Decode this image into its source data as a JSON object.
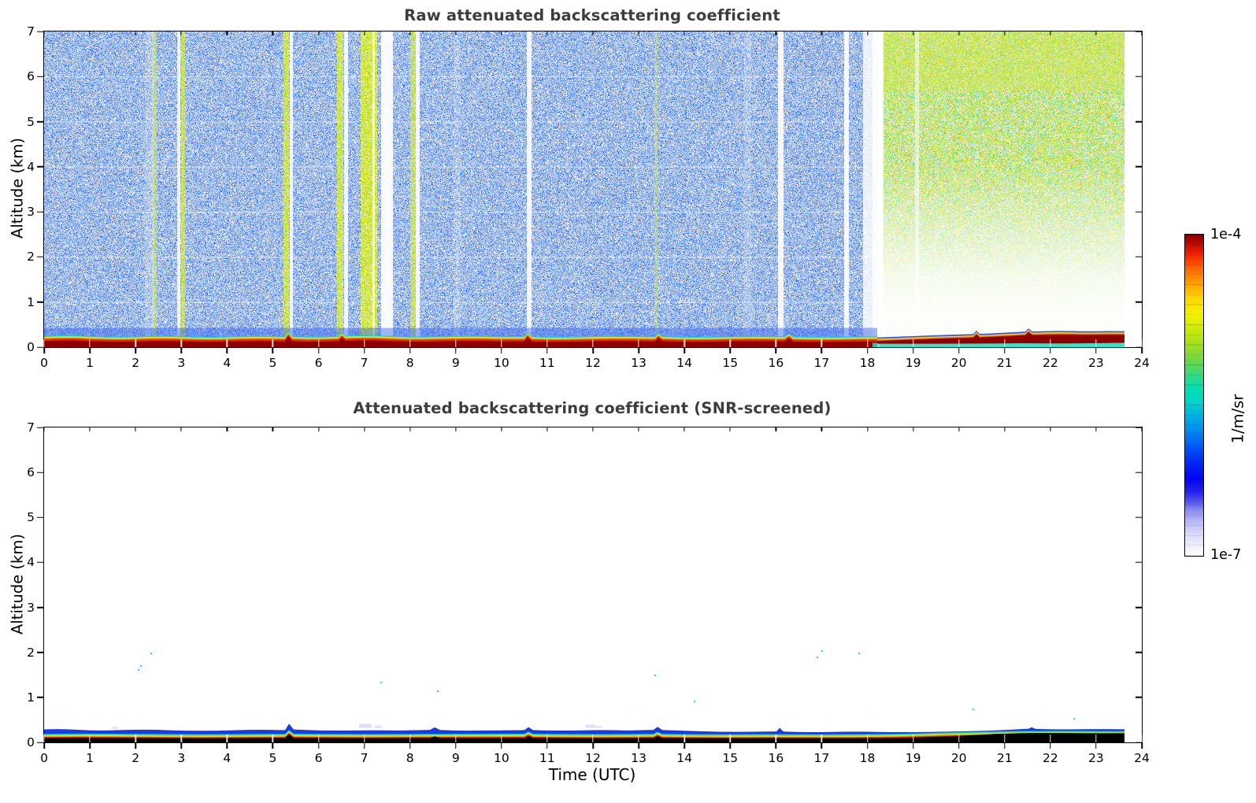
{
  "figure": {
    "panels": [
      {
        "title": "Raw attenuated backscattering coefficient"
      },
      {
        "title": "Attenuated backscattering coefficient (SNR-screened)"
      }
    ],
    "x_axis": {
      "label": "Time (UTC)",
      "ticks": [
        "0",
        "1",
        "2",
        "3",
        "4",
        "5",
        "6",
        "7",
        "8",
        "9",
        "10",
        "11",
        "12",
        "13",
        "14",
        "15",
        "16",
        "17",
        "18",
        "19",
        "20",
        "21",
        "22",
        "23",
        "24"
      ]
    },
    "y_axis": {
      "label": "Altitude (km)",
      "ticks": [
        "0",
        "1",
        "2",
        "3",
        "4",
        "5",
        "6",
        "7"
      ]
    },
    "colorbar": {
      "max_label": "1e-4",
      "min_label": "1e-7",
      "unit": "1/m/sr"
    }
  },
  "chart_data": [
    {
      "type": "heatmap",
      "title": "Raw attenuated backscattering coefficient",
      "xlabel": "Time (UTC)",
      "ylabel": "Altitude (km)",
      "x_range_hours": [
        0,
        24
      ],
      "y_range_km": [
        0,
        7
      ],
      "x_ticks": [
        0,
        1,
        2,
        3,
        4,
        5,
        6,
        7,
        8,
        9,
        10,
        11,
        12,
        13,
        14,
        15,
        16,
        17,
        18,
        19,
        20,
        21,
        22,
        23,
        24
      ],
      "y_ticks": [
        0,
        1,
        2,
        3,
        4,
        5,
        6,
        7
      ],
      "colorbar": {
        "unit": "1/m/sr",
        "min": 1e-07,
        "max": 0.0001,
        "scale": "log",
        "colormap": "jet fading to white at low end",
        "tick_labels": [
          "1e-7",
          "1e-4"
        ]
      },
      "data_end_hour": 23.6,
      "features": [
        "Dense blue background noise (~1e-6 1/m/sr) fills 0 to 18.3 UTC at all altitudes above ~0.3 km (night)",
        "Yellow-green solar background noise (~1e-5) fills 18.3 to 23.6 UTC, densest near 7 km, fading to white below ~2 km (day)",
        "Strong surface aerosol layer (dark red, ~1e-4) from 0 to ~0.2 km at all times, topped by red/orange/yellow/cyan fringes and a dense blue speckle band up to ~0.45 km",
        "After ~18.5 UTC a cyan base layer (0 to 0.1 km) appears under the dark red layer, which rises to ~0.35 km around 21 UTC",
        "White data-gap columns near 2.95, 5.4, 6.6, 7.4-7.6, 8.2, 10.6, 16.1, 17.5, 18.0-18.4 and 19.0 UTC",
        "Bright yellow-green noise columns near 2.4, 3.0, 5.3, 6.45, 7.0-7.3, 8.05 and 13.4 UTC",
        "Faint white horizontal gridlines at each integer altitude",
        "No data after ~23.6 UTC (white strip before the right axis)"
      ]
    },
    {
      "type": "heatmap",
      "title": "Attenuated backscattering coefficient (SNR-screened)",
      "xlabel": "Time (UTC)",
      "ylabel": "Altitude (km)",
      "x_range_hours": [
        0,
        24
      ],
      "y_range_km": [
        0,
        7
      ],
      "colorbar": {
        "unit": "1/m/sr",
        "min": 1e-07,
        "max": 0.0001,
        "scale": "log"
      },
      "data_end_hour": 23.6,
      "features": [
        "SNR screening removes nearly all noise; background is white",
        "Remaining near-surface layer: black core 0 to ~0.1 km, thin red/orange/yellow/green fringes, cyan line, and a blue layer up to ~0.25-0.35 km",
        "Blue layer bumps near 0.4, 5.35 (to ~0.42 km), 8.6, 10.6, 13.4, 16.1 and 21.5 UTC",
        "Layer thins after ~14 UTC; black core thickens to ~0.2 km after ~20 UTC while red/orange fringes disappear",
        "Sparse cyan specks between 0.3 and 0.8 km throughout the day",
        "Isolated cyan specks up to ~2.1 km near 2.1, 2.3, 7.4, 8.6, 13.3, 16.9 and 17.8 UTC",
        "Pale lilac wisps just above the layer near 7 and 11.9 UTC"
      ]
    }
  ]
}
